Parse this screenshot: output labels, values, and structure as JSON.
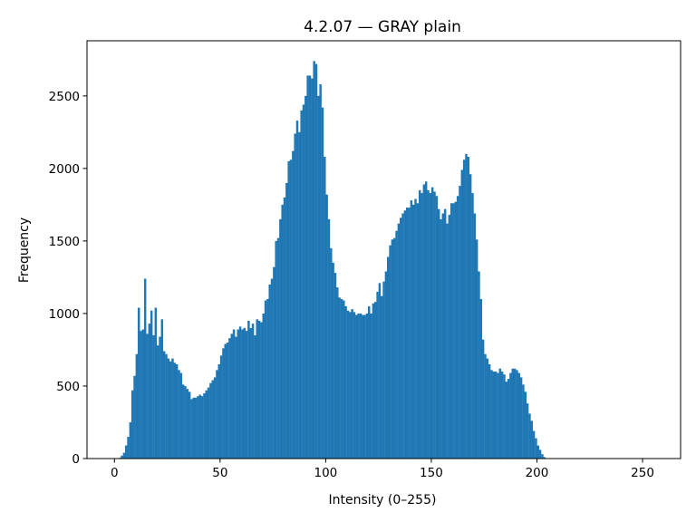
{
  "chart_data": {
    "type": "bar",
    "title": "4.2.07 — GRAY plain",
    "xlabel": "Intensity (0–255)",
    "ylabel": "Frequency",
    "xlim": [
      -13,
      268
    ],
    "ylim": [
      0,
      2880
    ],
    "xticks": [
      0,
      50,
      100,
      150,
      200,
      250
    ],
    "yticks": [
      0,
      500,
      1000,
      1500,
      2000,
      2500
    ],
    "grid": false,
    "color": "#1f77b4",
    "bin_start": 0,
    "bin_width": 1,
    "values": [
      0,
      0,
      5,
      20,
      40,
      90,
      150,
      250,
      470,
      570,
      720,
      1040,
      880,
      890,
      1240,
      860,
      930,
      1020,
      850,
      1040,
      780,
      840,
      960,
      740,
      720,
      690,
      670,
      690,
      660,
      650,
      610,
      590,
      510,
      500,
      480,
      460,
      410,
      420,
      420,
      430,
      440,
      430,
      450,
      470,
      490,
      520,
      540,
      560,
      610,
      650,
      710,
      760,
      790,
      800,
      830,
      860,
      890,
      840,
      890,
      910,
      890,
      900,
      880,
      950,
      900,
      930,
      850,
      960,
      950,
      940,
      1000,
      1090,
      1100,
      1200,
      1240,
      1320,
      1500,
      1520,
      1650,
      1750,
      1800,
      1900,
      2050,
      2060,
      2120,
      2240,
      2330,
      2250,
      2400,
      2440,
      2500,
      2640,
      2640,
      2620,
      2740,
      2720,
      2500,
      2580,
      2420,
      2080,
      1820,
      1650,
      1450,
      1350,
      1280,
      1180,
      1110,
      1100,
      1090,
      1050,
      1020,
      1010,
      1030,
      1010,
      990,
      1000,
      1000,
      990,
      990,
      1000,
      1050,
      1000,
      1070,
      1080,
      1150,
      1210,
      1120,
      1220,
      1290,
      1390,
      1470,
      1510,
      1520,
      1570,
      1620,
      1660,
      1690,
      1710,
      1730,
      1730,
      1780,
      1750,
      1790,
      1760,
      1850,
      1830,
      1890,
      1910,
      1850,
      1830,
      1870,
      1840,
      1810,
      1720,
      1650,
      1690,
      1720,
      1620,
      1680,
      1760,
      1760,
      1770,
      1810,
      1880,
      1990,
      2060,
      2100,
      2080,
      1960,
      1830,
      1690,
      1510,
      1290,
      1100,
      820,
      720,
      690,
      650,
      610,
      600,
      600,
      590,
      620,
      600,
      580,
      530,
      550,
      590,
      620,
      620,
      610,
      590,
      560,
      510,
      460,
      380,
      310,
      260,
      190,
      140,
      90,
      60,
      30,
      10,
      0,
      0,
      0,
      0,
      0,
      0,
      0,
      0,
      0,
      0,
      0,
      0,
      0,
      0,
      0,
      0,
      0,
      0,
      0,
      0,
      0,
      0,
      0,
      0,
      0,
      0,
      0,
      0,
      0,
      0,
      0,
      0,
      0,
      0,
      0,
      0,
      0,
      0,
      0,
      0,
      0
    ]
  }
}
